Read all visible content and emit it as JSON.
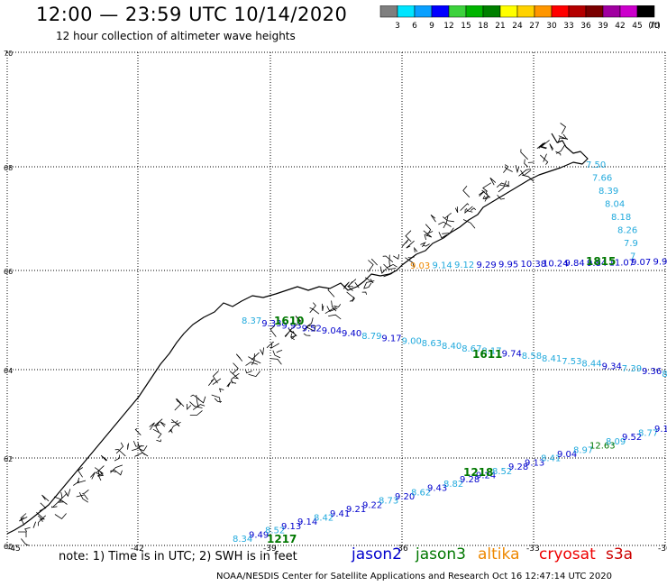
{
  "header": {
    "title": "12:00 — 23:59 UTC 10/14/2020",
    "subtitle": "12 hour collection of altimeter wave heights"
  },
  "legend": {
    "unit": "(ft)",
    "bins": [
      {
        "color": "#7f7f7f",
        "label": "3"
      },
      {
        "color": "#00e5ff",
        "label": "6"
      },
      {
        "color": "#0aa0ff",
        "label": "9"
      },
      {
        "color": "#0000ff",
        "label": "12"
      },
      {
        "color": "#3cd23c",
        "label": "15"
      },
      {
        "color": "#00b400",
        "label": "18"
      },
      {
        "color": "#008000",
        "label": "21"
      },
      {
        "color": "#ffff00",
        "label": "24"
      },
      {
        "color": "#ffd200",
        "label": "27"
      },
      {
        "color": "#ff9600",
        "label": "30"
      },
      {
        "color": "#ff0000",
        "label": "33"
      },
      {
        "color": "#b40000",
        "label": "36"
      },
      {
        "color": "#7a0000",
        "label": "39"
      },
      {
        "color": "#a000a0",
        "label": "42"
      },
      {
        "color": "#cc00cc",
        "label": "45"
      },
      {
        "color": "#000000",
        "label": "70"
      }
    ]
  },
  "map": {
    "lon_ticks": [
      "-45",
      "-42",
      "-39",
      "-36",
      "-33",
      "-30"
    ],
    "lat_ticks": [
      "70",
      "68",
      "66",
      "64",
      "62",
      "60"
    ],
    "colors": {
      "lightblue": "#22aadd",
      "blue": "#0000cc",
      "green": "#007700",
      "orange": "#ee8800",
      "coast": "#000000",
      "grid": "#000000"
    },
    "tracks": [
      {
        "id": "1610",
        "sat": "jason3",
        "time_label": "1610",
        "values": [
          {
            "v": "8.37",
            "c": "lightblue"
          },
          {
            "v": "9.33",
            "c": "blue"
          },
          {
            "v": "9.93",
            "c": "blue"
          },
          {
            "v": "9.52",
            "c": "blue"
          },
          {
            "v": "9.04",
            "c": "blue"
          },
          {
            "v": "9.40",
            "c": "blue"
          },
          {
            "v": "8.79",
            "c": "lightblue"
          },
          {
            "v": "9.17",
            "c": "blue"
          },
          {
            "v": "9.00",
            "c": "lightblue"
          },
          {
            "v": "8.63",
            "c": "lightblue"
          },
          {
            "v": "8.40",
            "c": "lightblue"
          },
          {
            "v": "8.67",
            "c": "lightblue"
          },
          {
            "v": "8.17",
            "c": "lightblue"
          },
          {
            "v": "9.74",
            "c": "blue"
          },
          {
            "v": "8.58",
            "c": "lightblue"
          },
          {
            "v": "8.41",
            "c": "lightblue"
          },
          {
            "v": "7.53",
            "c": "lightblue"
          },
          {
            "v": "8.44",
            "c": "lightblue"
          },
          {
            "v": "9.34",
            "c": "blue"
          },
          {
            "v": "7.39",
            "c": "lightblue"
          },
          {
            "v": "9.36",
            "c": "blue"
          },
          {
            "v": "8.08",
            "c": "lightblue"
          }
        ]
      },
      {
        "id": "1611",
        "sat": "jason3",
        "time_label": "1611",
        "values": []
      },
      {
        "id": "1217",
        "sat": "jason3",
        "time_label": "1217",
        "values": [
          {
            "v": "8.34",
            "c": "lightblue"
          },
          {
            "v": "9.49",
            "c": "blue"
          },
          {
            "v": "8.52",
            "c": "lightblue"
          },
          {
            "v": "9.13",
            "c": "blue"
          },
          {
            "v": "9.14",
            "c": "blue"
          },
          {
            "v": "8.42",
            "c": "lightblue"
          },
          {
            "v": "9.41",
            "c": "blue"
          },
          {
            "v": "9.21",
            "c": "blue"
          },
          {
            "v": "9.22",
            "c": "blue"
          },
          {
            "v": "8.73",
            "c": "lightblue"
          },
          {
            "v": "9.20",
            "c": "blue"
          },
          {
            "v": "8.62",
            "c": "lightblue"
          },
          {
            "v": "9.43",
            "c": "blue"
          },
          {
            "v": "8.82",
            "c": "lightblue"
          },
          {
            "v": "9.28",
            "c": "blue"
          },
          {
            "v": "9.24",
            "c": "blue"
          },
          {
            "v": "8.52",
            "c": "lightblue"
          },
          {
            "v": "9.28",
            "c": "blue"
          },
          {
            "v": "9.13",
            "c": "blue"
          },
          {
            "v": "8.41",
            "c": "lightblue"
          },
          {
            "v": "9.04",
            "c": "blue"
          },
          {
            "v": "8.97",
            "c": "lightblue"
          },
          {
            "v": "12.63",
            "c": "green"
          },
          {
            "v": "8.09",
            "c": "lightblue"
          },
          {
            "v": "9.52",
            "c": "blue"
          },
          {
            "v": "8.77",
            "c": "lightblue"
          },
          {
            "v": "9.1",
            "c": "blue"
          }
        ]
      },
      {
        "id": "1218",
        "sat": "jason3",
        "time_label": "1218",
        "values": []
      },
      {
        "id": "1815",
        "sat": "jason2",
        "time_label": "1815",
        "values": [
          {
            "v": "9.03",
            "c": "orange"
          },
          {
            "v": "9.14",
            "c": "lightblue"
          },
          {
            "v": "9.12",
            "c": "lightblue"
          },
          {
            "v": "9.29",
            "c": "blue"
          },
          {
            "v": "9.95",
            "c": "blue"
          },
          {
            "v": "10.38",
            "c": "blue"
          },
          {
            "v": "10.24",
            "c": "blue"
          },
          {
            "v": "9.84",
            "c": "blue"
          },
          {
            "v": "9.84",
            "c": "blue"
          },
          {
            "v": "11.07",
            "c": "blue"
          },
          {
            "v": "9.07",
            "c": "blue"
          },
          {
            "v": "9.9",
            "c": "blue"
          }
        ]
      },
      {
        "id": "ne",
        "sat": "jason2",
        "time_label": "",
        "values": [
          {
            "v": "7.50",
            "c": "lightblue"
          },
          {
            "v": "7.66",
            "c": "lightblue"
          },
          {
            "v": "8.39",
            "c": "lightblue"
          },
          {
            "v": "8.04",
            "c": "lightblue"
          },
          {
            "v": "8.18",
            "c": "lightblue"
          },
          {
            "v": "8.26",
            "c": "lightblue"
          },
          {
            "v": "7.9",
            "c": "lightblue"
          },
          {
            "v": "7",
            "c": "lightblue"
          }
        ]
      }
    ]
  },
  "footer": {
    "note": "note:  1) Time is in UTC;  2) SWH is in feet",
    "satellites": [
      {
        "name": "jason2",
        "color": "#0000cc"
      },
      {
        "name": "jason3",
        "color": "#007700"
      },
      {
        "name": "altika",
        "color": "#ee8800"
      },
      {
        "name": "cryosat",
        "color": "#ee0000"
      },
      {
        "name": "s3a",
        "color": "#cc0000"
      }
    ],
    "credit": "NOAA/NESDIS Center for Satellite Applications and Research    Oct 16 12:47:14 UTC 2020"
  }
}
